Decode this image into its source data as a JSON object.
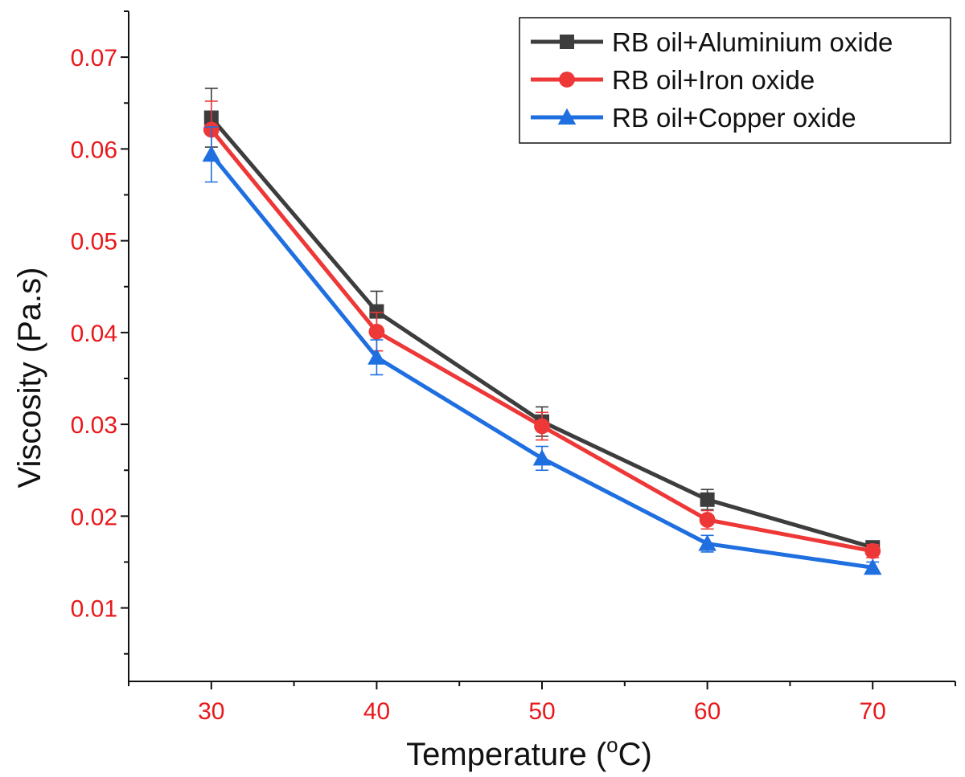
{
  "chart_data": {
    "type": "line",
    "xlabel": "Temperature (",
    "xlabel_sup": "o",
    "xlabel_suffix": "C)",
    "ylabel": "Viscosity (Pa.s)",
    "x": [
      30,
      40,
      50,
      60,
      70
    ],
    "xlim": [
      25,
      75
    ],
    "ylim": [
      0.002,
      0.075
    ],
    "x_ticks": [
      "30",
      "40",
      "50",
      "60",
      "70"
    ],
    "y_ticks": [
      "0.01",
      "0.02",
      "0.03",
      "0.04",
      "0.05",
      "0.06",
      "0.07"
    ],
    "grid": false,
    "legend_position": "top-right",
    "tick_label_color": "#e8191c",
    "series": [
      {
        "name": "RB oil+Aluminium oxide",
        "color": "#3d3d3d",
        "marker": "square",
        "values": [
          0.0634,
          0.0423,
          0.0303,
          0.0218,
          0.0166
        ],
        "errors": [
          0.0032,
          0.0022,
          0.0016,
          0.0011,
          0.0006
        ]
      },
      {
        "name": "RB oil+Iron oxide",
        "color": "#ee3737",
        "marker": "circle",
        "values": [
          0.0621,
          0.0401,
          0.0298,
          0.0196,
          0.0162
        ],
        "errors": [
          0.0031,
          0.0021,
          0.0015,
          0.001,
          0.0007
        ]
      },
      {
        "name": "RB oil+Copper oxide",
        "color": "#1f6fe0",
        "marker": "triangle",
        "values": [
          0.0594,
          0.0373,
          0.0263,
          0.017,
          0.0144
        ],
        "errors": [
          0.003,
          0.0019,
          0.0013,
          0.0009,
          0.0006
        ]
      }
    ]
  }
}
